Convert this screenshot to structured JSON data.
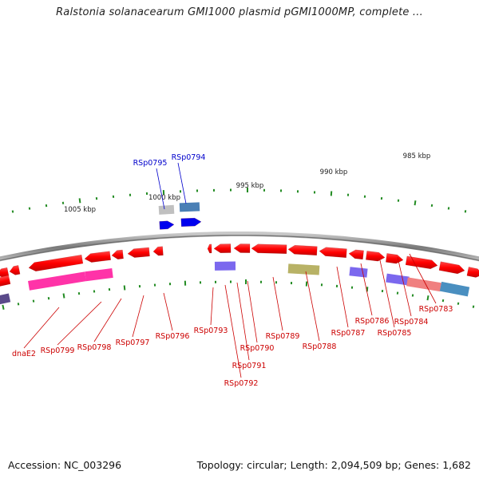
{
  "title": "Ralstonia solanacearum GMI1000 plasmid pGMI1000MP, complete ...",
  "footer": {
    "accession": "Accession: NC_003296",
    "topology": "Topology: circular; Length: 2,094,509 bp; Genes: 1,682"
  },
  "scale_labels": [
    "1005 kbp",
    "1000 kbp",
    "995 kbp",
    "990 kbp",
    "985 kbp"
  ],
  "feature_labels_blue": [
    "RSp0795",
    "RSp0794"
  ],
  "feature_labels_red": [
    "dnaE2",
    "RSp0799",
    "RSp0798",
    "RSp0797",
    "RSp0796",
    "RSp0793",
    "RSp0792",
    "RSp0791",
    "RSp0790",
    "RSp0789",
    "RSp0788",
    "RSp0787",
    "RSp0786",
    "RSp0785",
    "RSp0784",
    "RSp0783"
  ],
  "colors": {
    "gene": "#ff0000",
    "label_red": "#cc0000",
    "label_blue": "#0000cc",
    "tick": "#228b22",
    "backbone": "#888888"
  }
}
